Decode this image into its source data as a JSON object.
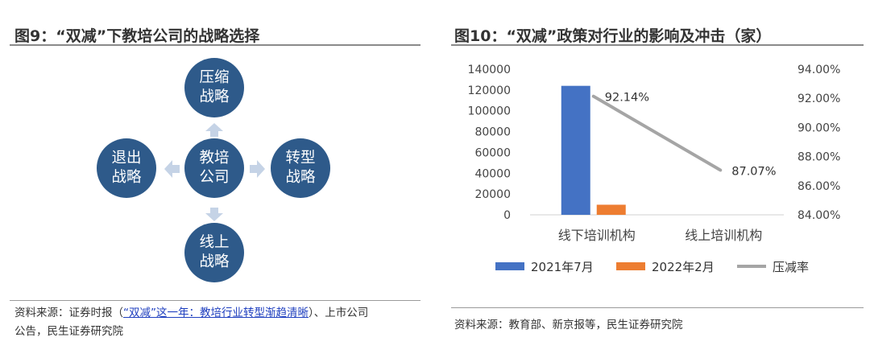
{
  "left_panel": {
    "title": "图9：“双减”下教培公司的战略选择",
    "center_node": "教培公司",
    "nodes": {
      "top": "压缩战略",
      "left": "退出战略",
      "right": "转型战略",
      "bottom": "线上战略"
    },
    "source_prefix": "资料来源：证券时报（",
    "source_link": "“双减”这一年：教培行业转型渐趋清晰",
    "source_suffix": "）、上市公司",
    "source_line2": "公告，民生证券研究院",
    "colors": {
      "node_fill": "#2e5a8a",
      "arrow": "#c5d3e6"
    },
    "icons": [
      "arrow-up-icon",
      "arrow-down-icon",
      "arrow-left-icon",
      "arrow-right-icon"
    ]
  },
  "right_panel": {
    "title": "图10：“双减”政策对行业的影响及冲击（家）",
    "source": "资料来源：教育部、新京报等，民生证券研究院"
  },
  "chart_data": {
    "type": "bar",
    "categories": [
      "线下培训机构",
      "线上培训机构"
    ],
    "series": [
      {
        "name": "2021年7月",
        "type": "bar",
        "axis": "left",
        "color": "#4472c4",
        "values": [
          124000,
          0
        ]
      },
      {
        "name": "2022年2月",
        "type": "bar",
        "axis": "left",
        "color": "#ed7d31",
        "values": [
          9700,
          0
        ]
      },
      {
        "name": "压减率",
        "type": "line",
        "axis": "right",
        "color": "#a5a5a5",
        "values": [
          0.9214,
          0.8707
        ]
      }
    ],
    "data_labels": [
      "92.14%",
      "87.07%"
    ],
    "y_left": {
      "ticks": [
        "0",
        "20000",
        "40000",
        "60000",
        "80000",
        "100000",
        "120000",
        "140000"
      ],
      "min": 0,
      "max": 140000
    },
    "y_right": {
      "ticks": [
        "84.00%",
        "86.00%",
        "88.00%",
        "90.00%",
        "92.00%",
        "94.00%"
      ],
      "min": 0.84,
      "max": 0.94
    },
    "grid": false,
    "legend_position": "bottom"
  }
}
